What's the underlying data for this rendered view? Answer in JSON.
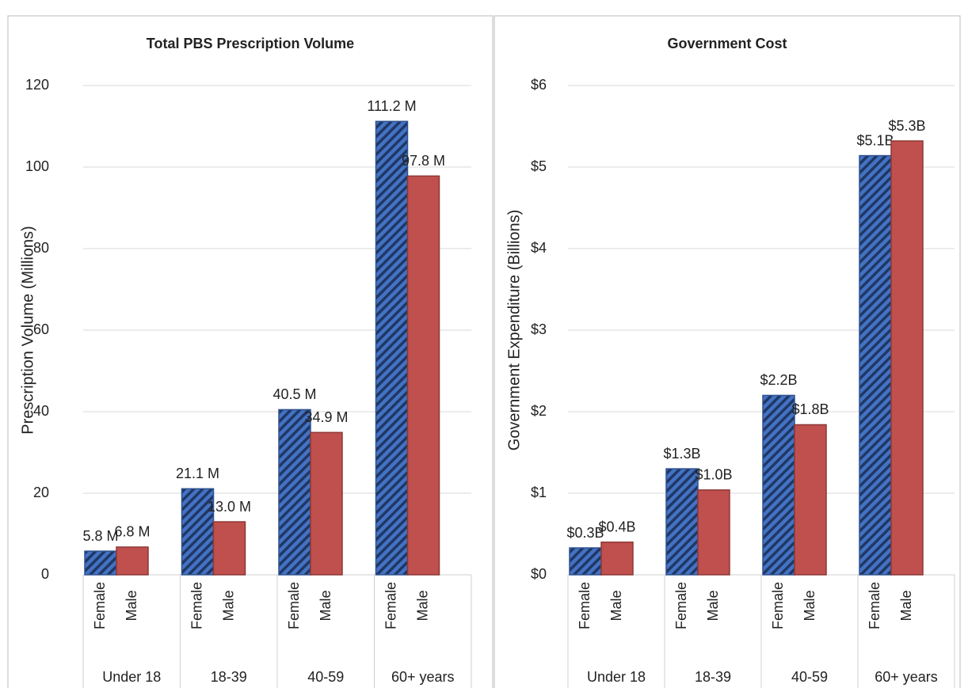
{
  "chart_data": [
    {
      "type": "grouped-bar",
      "title": "Total PBS Prescription Volume",
      "y_label": "Prescription Volume (Millions)",
      "categories": [
        "Under 18",
        "18-39",
        "40-59",
        "60+ years"
      ],
      "series": [
        {
          "name": "Female",
          "color": "#4472c4",
          "pattern": "hatch",
          "values": [
            5.8,
            21.1,
            40.5,
            111.2
          ],
          "value_labels": [
            "5.8 M",
            "21.1 M",
            "40.5 M",
            "111.2 M"
          ]
        },
        {
          "name": "Male",
          "color": "#c0504d",
          "values": [
            6.8,
            13.0,
            34.9,
            97.8
          ],
          "value_labels": [
            "6.8 M",
            "13.0 M",
            "34.9 M",
            "97.8 M"
          ]
        }
      ],
      "ylim": [
        0,
        120
      ],
      "yticks": [
        0,
        20,
        40,
        60,
        80,
        100,
        120
      ],
      "grid": true
    },
    {
      "type": "grouped-bar",
      "title": "Government Cost",
      "y_label": "Government Expenditure (Billions)",
      "categories": [
        "Under 18",
        "18-39",
        "40-59",
        "60+ years"
      ],
      "series": [
        {
          "name": "Female",
          "color": "#4472c4",
          "pattern": "hatch",
          "values": [
            0.33,
            1.3,
            2.2,
            5.14
          ],
          "value_labels": [
            "$0.3B",
            "$1.3B",
            "$2.2B",
            "$5.1B"
          ]
        },
        {
          "name": "Male",
          "color": "#c0504d",
          "values": [
            0.4,
            1.04,
            1.84,
            5.32
          ],
          "value_labels": [
            "$0.4B",
            "$1.0B",
            "$1.8B",
            "$5.3B"
          ]
        }
      ],
      "ylim": [
        0,
        6
      ],
      "yticks": [
        {
          "value": 0,
          "label": "$0"
        },
        {
          "value": 1,
          "label": "$1"
        },
        {
          "value": 2,
          "label": "$2"
        },
        {
          "value": 3,
          "label": "$3"
        },
        {
          "value": 4,
          "label": "$4"
        },
        {
          "value": 5,
          "label": "$5"
        },
        {
          "value": 6,
          "label": "$6"
        }
      ],
      "grid": true
    }
  ]
}
